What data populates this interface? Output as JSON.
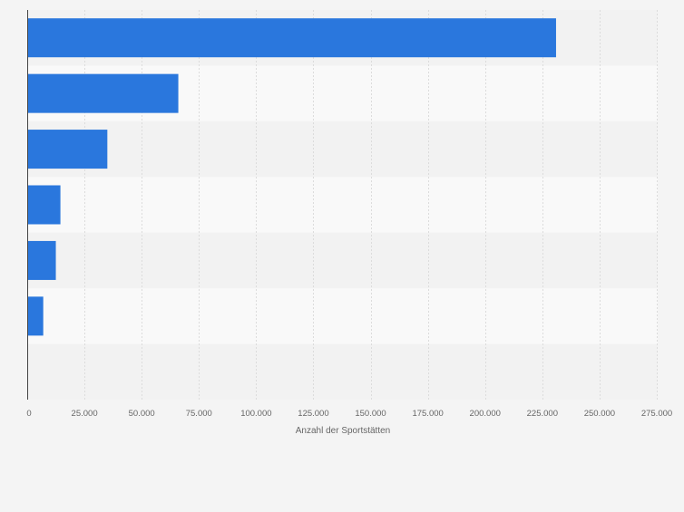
{
  "chart_data": {
    "type": "bar",
    "orientation": "horizontal",
    "categories": [
      "",
      "",
      "",
      "",
      "",
      "",
      ""
    ],
    "values": [
      231000,
      66000,
      35000,
      14500,
      12500,
      7000,
      null
    ],
    "xlabel": "Anzahl der Sportstätten",
    "xlim": [
      0,
      275000
    ],
    "ticks": [
      0,
      25000,
      50000,
      75000,
      100000,
      125000,
      150000,
      175000,
      200000,
      225000,
      250000,
      275000
    ],
    "tick_labels": [
      "0",
      "25.000",
      "50.000",
      "75.000",
      "100.000",
      "125.000",
      "150.000",
      "175.000",
      "200.000",
      "225.000",
      "250.000",
      "275.000"
    ],
    "grid": "vertical",
    "colors": {
      "bar": "#2a77dd",
      "band_light": "#f9f9f9",
      "band_dark": "#f2f2f2",
      "grid": "#dcdcdc",
      "axis": "#444444",
      "text": "#666666"
    }
  }
}
